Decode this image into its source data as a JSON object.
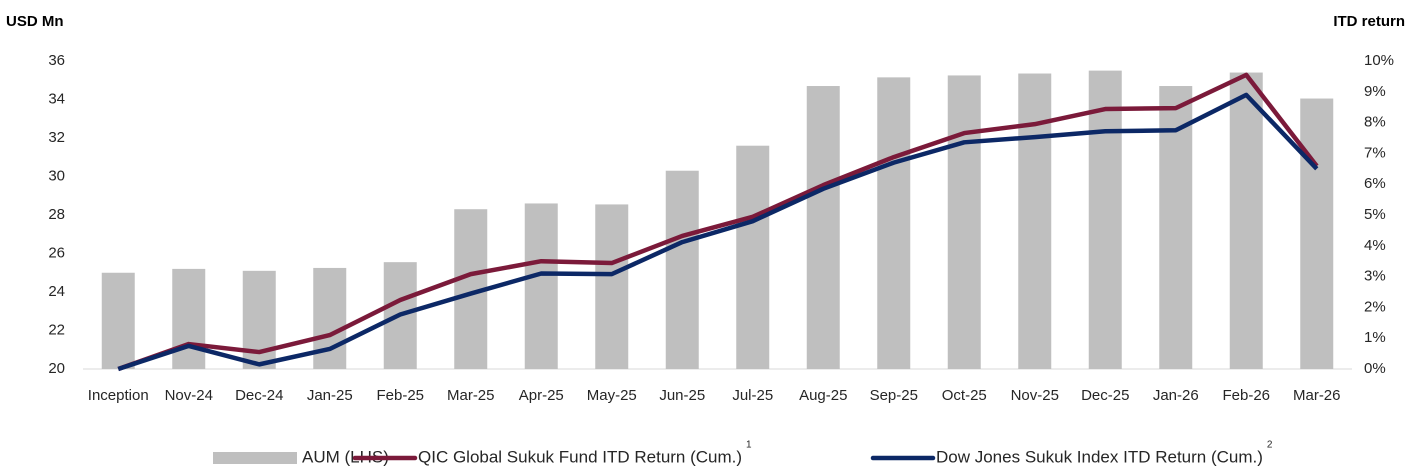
{
  "chart_data": {
    "type": "bar_line",
    "y_label": "USD Mn",
    "y2_label": "ITD return",
    "categories": [
      "Inception",
      "Nov-24",
      "Dec-24",
      "Jan-25",
      "Feb-25",
      "Mar-25",
      "Apr-25",
      "May-25",
      "Jun-25",
      "Jul-25",
      "Aug-25",
      "Sep-25",
      "Oct-25",
      "Nov-25",
      "Dec-25",
      "Jan-26",
      "Feb-26",
      "Mar-26"
    ],
    "series": [
      {
        "name": "AUM (LHS)",
        "type": "bar",
        "color": "#bfbfbf",
        "values": [
          25.0,
          25.2,
          25.1,
          25.25,
          25.55,
          28.3,
          28.6,
          28.55,
          30.3,
          31.6,
          34.7,
          35.15,
          35.25,
          35.35,
          35.5,
          34.7,
          35.4,
          34.05
        ]
      },
      {
        "name": "QIC Global Sukuk Fund ITD Return (Cum.)",
        "note": "1",
        "type": "line",
        "axis": "y2",
        "color": "#7b1a3a",
        "values": [
          0,
          0.81,
          0.55,
          1.1,
          2.24,
          3.08,
          3.5,
          3.44,
          4.32,
          4.94,
          5.97,
          6.88,
          7.66,
          7.95,
          8.44,
          8.47,
          9.55,
          6.59
        ]
      },
      {
        "name": "Dow Jones Sukuk Index ITD Return (Cum.)",
        "note": "2",
        "type": "line",
        "axis": "y2",
        "color": "#0c2866",
        "values": [
          0,
          0.75,
          0.15,
          0.65,
          1.77,
          2.45,
          3.1,
          3.08,
          4.12,
          4.8,
          5.85,
          6.7,
          7.36,
          7.53,
          7.72,
          7.75,
          8.9,
          6.5
        ]
      }
    ],
    "ylim": [
      20,
      36
    ],
    "yticks": [
      20,
      22,
      24,
      26,
      28,
      30,
      32,
      34,
      36
    ],
    "y2lim": [
      0,
      10
    ],
    "y2ticks": [
      {
        "value": 0,
        "label": "0%"
      },
      {
        "value": 1,
        "label": "1%"
      },
      {
        "value": 2,
        "label": "2%"
      },
      {
        "value": 3,
        "label": "3%"
      },
      {
        "value": 4,
        "label": "4%"
      },
      {
        "value": 5,
        "label": "5%"
      },
      {
        "value": 6,
        "label": "6%"
      },
      {
        "value": 7,
        "label": "7%"
      },
      {
        "value": 8,
        "label": "8%"
      },
      {
        "value": 9,
        "label": "9%"
      },
      {
        "value": 10,
        "label": "10%"
      }
    ],
    "grid": false,
    "legend": "bottom"
  }
}
